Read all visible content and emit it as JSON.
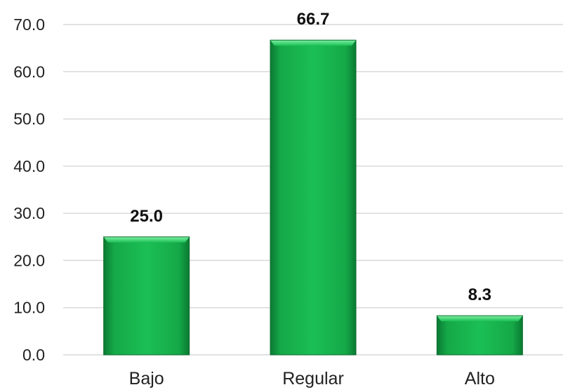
{
  "chart_data": {
    "type": "bar",
    "categories": [
      "Bajo",
      "Regular",
      "Alto"
    ],
    "values": [
      25.0,
      66.7,
      8.3
    ],
    "data_labels": [
      "25.0",
      "66.7",
      "8.3"
    ],
    "title": "",
    "xlabel": "",
    "ylabel": "",
    "ylim": [
      0,
      70
    ],
    "yticks": [
      "0.0",
      "10.0",
      "20.0",
      "30.0",
      "40.0",
      "50.0",
      "60.0",
      "70.0"
    ],
    "grid": true,
    "legend": "none",
    "colors": {
      "bar": "#16b14c",
      "bar_light": "#5ee889",
      "bar_dark": "#0a6b2c",
      "grid": "#d9d9d9"
    }
  }
}
